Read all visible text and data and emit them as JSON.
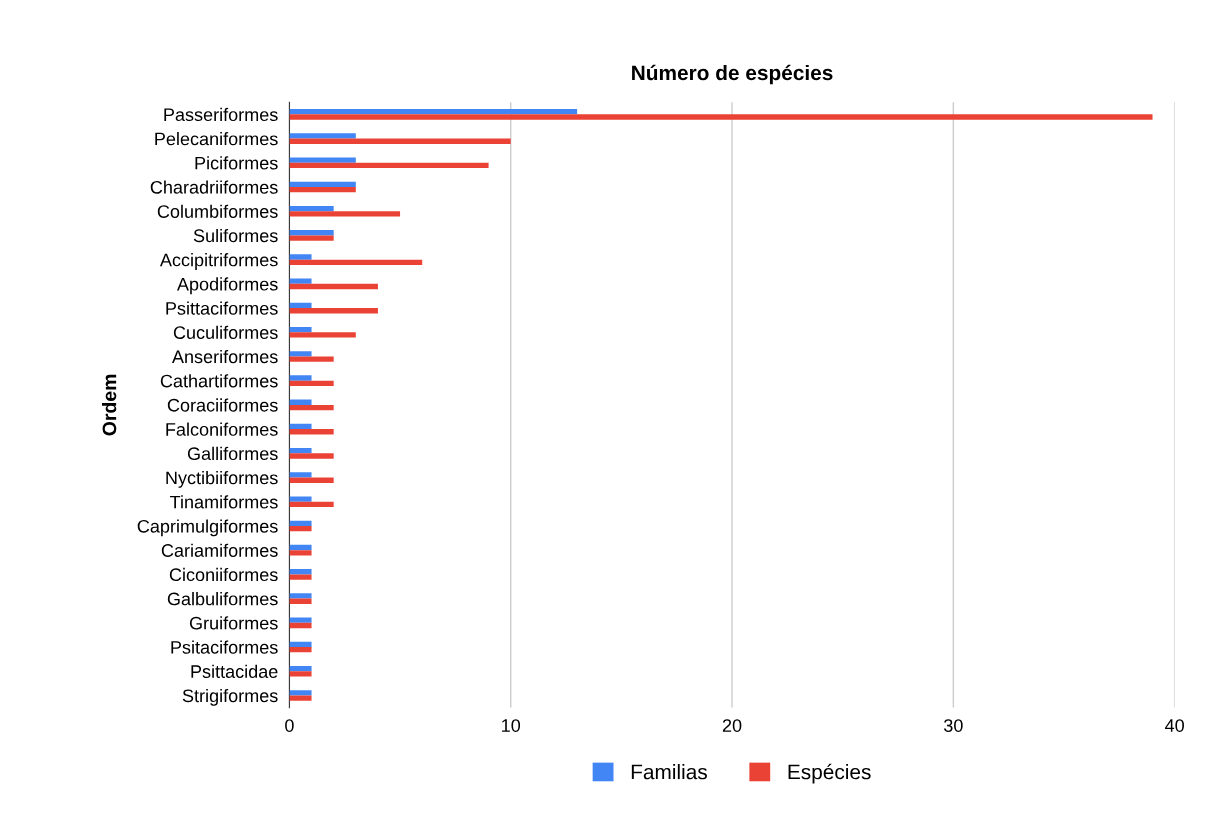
{
  "chart_data": {
    "type": "bar",
    "orientation": "horizontal",
    "title": "Número de espécies",
    "ylabel": "Ordem",
    "categories": [
      "Passeriformes",
      "Pelecaniformes",
      "Piciformes",
      "Charadriiformes",
      "Columbiformes",
      "Suliformes",
      "Accipitriformes",
      "Apodiformes",
      "Psittaciformes",
      "Cuculiformes",
      "Anseriformes",
      "Cathartiformes",
      "Coraciiformes",
      "Falconiformes",
      "Galliformes",
      "Nyctibiiformes",
      "Tinamiformes",
      "Caprimulgiformes",
      "Cariamiformes",
      "Ciconiiformes",
      "Galbuliformes",
      "Gruiformes",
      "Psitaciformes",
      "Psittacidae",
      "Strigiformes"
    ],
    "series": [
      {
        "name": "Familias",
        "color": "#4285f4",
        "values": [
          13,
          3,
          3,
          3,
          2,
          2,
          1,
          1,
          1,
          1,
          1,
          1,
          1,
          1,
          1,
          1,
          1,
          1,
          1,
          1,
          1,
          1,
          1,
          1,
          1
        ]
      },
      {
        "name": "Espécies",
        "color": "#ea4335",
        "values": [
          39,
          10,
          9,
          3,
          5,
          2,
          6,
          4,
          4,
          3,
          2,
          2,
          2,
          2,
          2,
          2,
          2,
          1,
          1,
          1,
          1,
          1,
          1,
          1,
          1
        ]
      }
    ],
    "xlim": [
      0,
      40
    ],
    "xticks": [
      0,
      10,
      20,
      30,
      40
    ],
    "grid": "x",
    "legend": "bottom"
  }
}
